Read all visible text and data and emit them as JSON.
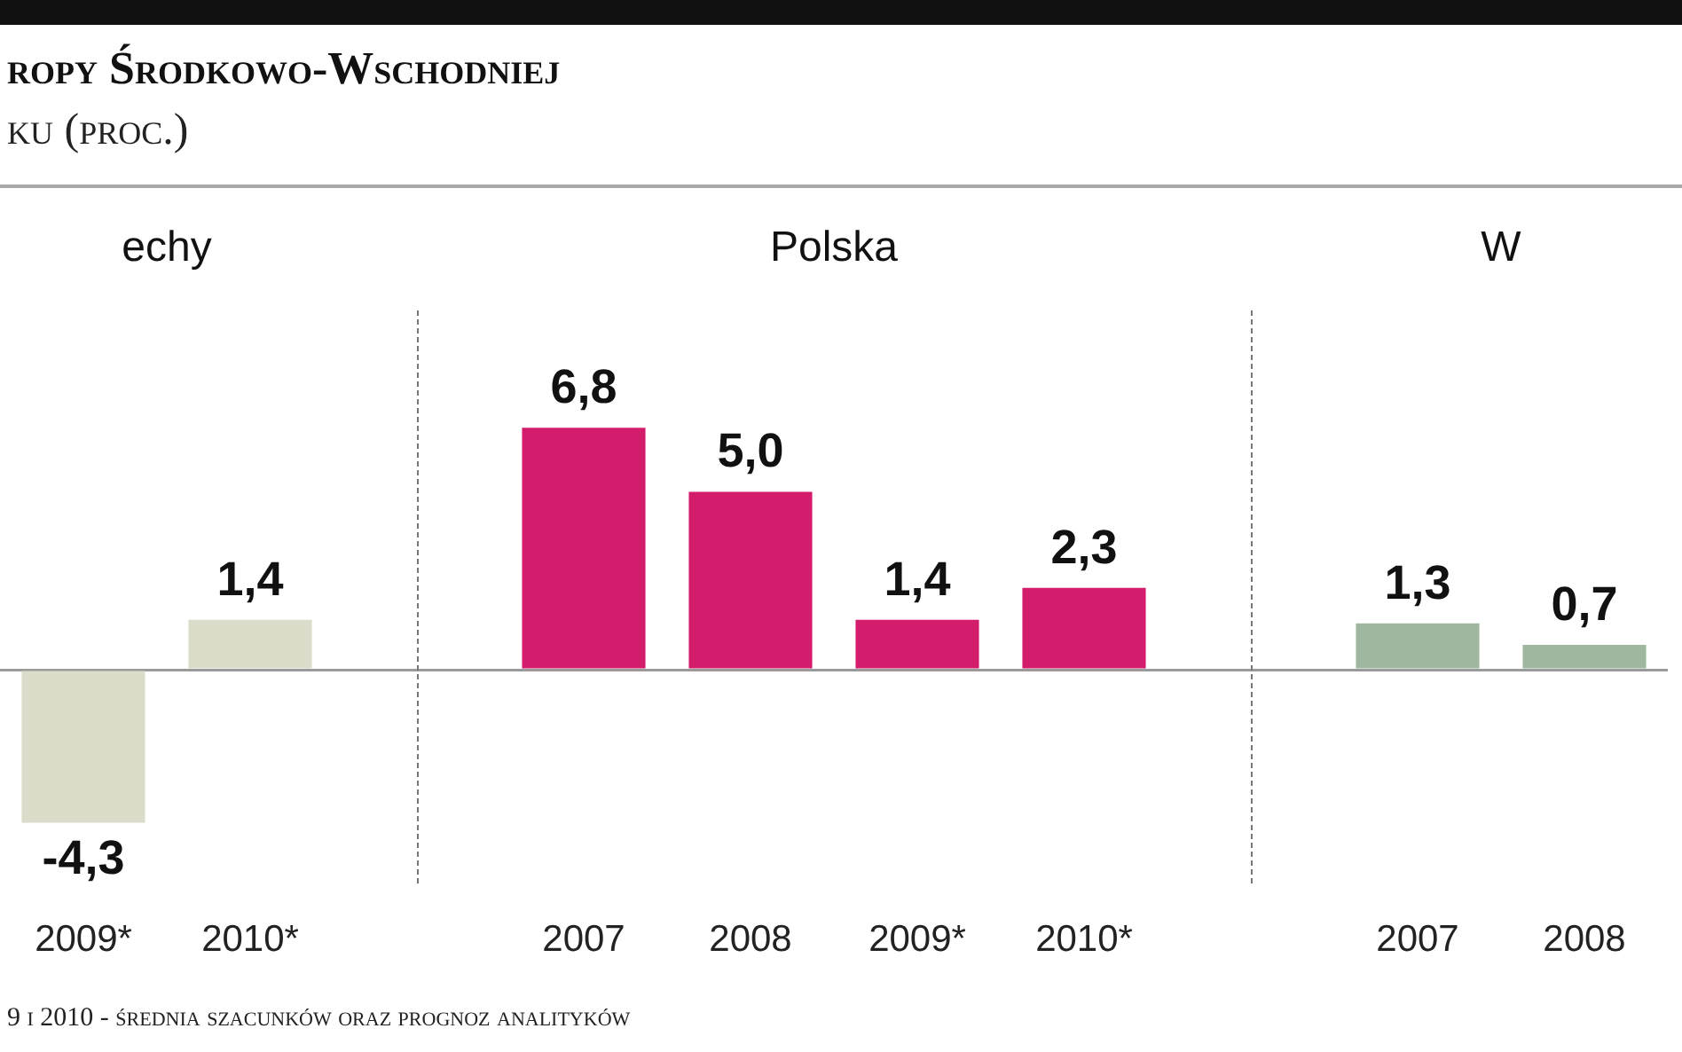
{
  "chart_data": {
    "type": "bar",
    "title": "ropy Środkowo-Wschodniej",
    "subtitle": "ku (proc.)",
    "categories": [
      "2009*",
      "2010*",
      null,
      "2007",
      "2008",
      "2009*",
      "2010*",
      null,
      "2007",
      "2008"
    ],
    "values": [
      -4.3,
      1.4,
      null,
      6.8,
      5.0,
      1.4,
      2.3,
      null,
      1.3,
      0.7
    ],
    "value_labels": [
      "-4,3",
      "1,4",
      null,
      "6,8",
      "5,0",
      "1,4",
      "2,3",
      null,
      "1,3",
      "0,7"
    ],
    "colors": [
      "#dcdccb",
      "#dcdccb",
      "#ffffff",
      "#d41c6c",
      "#d41c6c",
      "#d41c6c",
      "#d41c6c",
      "#ffffff",
      "#9fb79f",
      "#9fb79f"
    ],
    "tick_labels": "x",
    "annotations": [
      "echy",
      "Polska",
      "W",
      "9 i 2010 - średnia szacunków oraz prognoz analityków"
    ]
  }
}
